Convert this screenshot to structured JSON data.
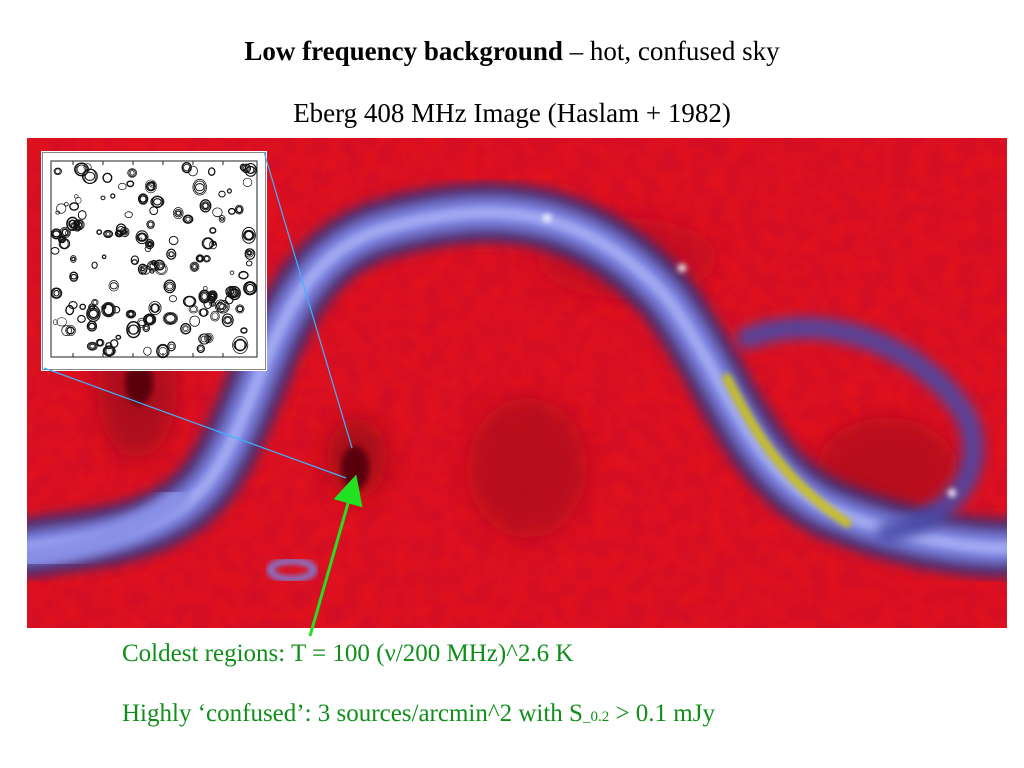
{
  "title": {
    "bold": "Low frequency background",
    "rest": " – hot, confused sky"
  },
  "subtitle": "Eberg 408 MHz Image (Haslam + 1982)",
  "notes": {
    "coldest": "Coldest regions: T = 100 (ν/200 MHz)^2.6 K",
    "confused_prefix": "Highly ‘confused’: 3 sources/arcmin^2 with S",
    "confused_subscript": "_0.2",
    "confused_suffix": " > 0.1 mJy"
  },
  "colors": {
    "background_red": "#e2121d",
    "galactic_plane": "#7a82e0",
    "plane_core": "#c9c020",
    "annotation_green": "#0f8f1a",
    "pointer_arrow": "#22e022",
    "connector_line": "#3cb4ff"
  }
}
